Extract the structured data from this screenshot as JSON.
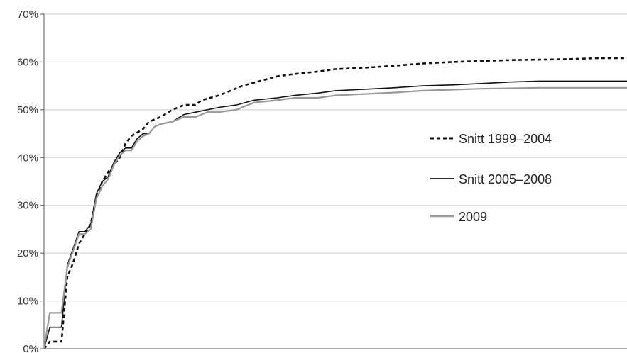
{
  "chart_data": {
    "type": "line",
    "title": "",
    "xlabel": "",
    "ylabel": "",
    "ylim": [
      0,
      70
    ],
    "yticks": [
      0,
      10,
      20,
      30,
      40,
      50,
      60,
      70
    ],
    "ytick_labels": [
      "0%",
      "10%",
      "20%",
      "30%",
      "40%",
      "50%",
      "60%",
      "70%"
    ],
    "x_tick_labels_visible": false,
    "xlim": [
      0,
      100
    ],
    "grid": "horizontal",
    "legend_position": "right",
    "series": [
      {
        "name": "Snitt 1999–2004",
        "style": "dotted",
        "color": "#111111",
        "points": [
          [
            0,
            0
          ],
          [
            1,
            1.5
          ],
          [
            3,
            1.5
          ],
          [
            4,
            15
          ],
          [
            5,
            18
          ],
          [
            6,
            22
          ],
          [
            7,
            24
          ],
          [
            8,
            26
          ],
          [
            9,
            32
          ],
          [
            10,
            35
          ],
          [
            11,
            37
          ],
          [
            13,
            40
          ],
          [
            14,
            43
          ],
          [
            15,
            44.5
          ],
          [
            17,
            46
          ],
          [
            18,
            47.5
          ],
          [
            20,
            48.5
          ],
          [
            22,
            50
          ],
          [
            24,
            51
          ],
          [
            26,
            51
          ],
          [
            27,
            52
          ],
          [
            30,
            53
          ],
          [
            32,
            54
          ],
          [
            34,
            55
          ],
          [
            37,
            56
          ],
          [
            40,
            57
          ],
          [
            43,
            57.5
          ],
          [
            47,
            58
          ],
          [
            50,
            58.5
          ],
          [
            55,
            58.8
          ],
          [
            60,
            59.2
          ],
          [
            65,
            59.7
          ],
          [
            70,
            60
          ],
          [
            75,
            60.2
          ],
          [
            80,
            60.4
          ],
          [
            85,
            60.5
          ],
          [
            90,
            60.6
          ],
          [
            95,
            60.8
          ],
          [
            100,
            60.8
          ]
        ]
      },
      {
        "name": "Snitt 2005–2008",
        "style": "solid",
        "color": "#111111",
        "points": [
          [
            0,
            0
          ],
          [
            1,
            4.5
          ],
          [
            3,
            4.5
          ],
          [
            4,
            17.5
          ],
          [
            5,
            21
          ],
          [
            6,
            24.5
          ],
          [
            7,
            24.5
          ],
          [
            8,
            26
          ],
          [
            9,
            32.5
          ],
          [
            10,
            35
          ],
          [
            11,
            36
          ],
          [
            12,
            39
          ],
          [
            13,
            41
          ],
          [
            14,
            42
          ],
          [
            15,
            42
          ],
          [
            16,
            44
          ],
          [
            17,
            45
          ],
          [
            18,
            45
          ],
          [
            19,
            46.5
          ],
          [
            20,
            47
          ],
          [
            22,
            47.5
          ],
          [
            24,
            49
          ],
          [
            26,
            49.5
          ],
          [
            28,
            50
          ],
          [
            30,
            50.5
          ],
          [
            33,
            51
          ],
          [
            36,
            52
          ],
          [
            40,
            52.5
          ],
          [
            43,
            53
          ],
          [
            47,
            53.5
          ],
          [
            50,
            54
          ],
          [
            55,
            54.3
          ],
          [
            60,
            54.6
          ],
          [
            65,
            55
          ],
          [
            70,
            55.2
          ],
          [
            75,
            55.5
          ],
          [
            80,
            55.8
          ],
          [
            85,
            56
          ],
          [
            90,
            56
          ],
          [
            95,
            56
          ],
          [
            100,
            56
          ]
        ]
      },
      {
        "name": "2009",
        "style": "solid",
        "color": "#999999",
        "points": [
          [
            0,
            0
          ],
          [
            1,
            7.5
          ],
          [
            3,
            7.5
          ],
          [
            4,
            17
          ],
          [
            5,
            20.5
          ],
          [
            6,
            24
          ],
          [
            7,
            24
          ],
          [
            8,
            25
          ],
          [
            9,
            31.5
          ],
          [
            10,
            34
          ],
          [
            11,
            35.5
          ],
          [
            12,
            38.5
          ],
          [
            13,
            40.5
          ],
          [
            14,
            41.5
          ],
          [
            15,
            41.5
          ],
          [
            16,
            43.5
          ],
          [
            17,
            44.5
          ],
          [
            18,
            45
          ],
          [
            19,
            46.5
          ],
          [
            20,
            47
          ],
          [
            22,
            47.5
          ],
          [
            24,
            48.5
          ],
          [
            26,
            48.5
          ],
          [
            28,
            49.5
          ],
          [
            30,
            49.5
          ],
          [
            33,
            50
          ],
          [
            36,
            51.5
          ],
          [
            40,
            52
          ],
          [
            43,
            52.5
          ],
          [
            47,
            52.5
          ],
          [
            50,
            53
          ],
          [
            55,
            53.3
          ],
          [
            60,
            53.6
          ],
          [
            65,
            54
          ],
          [
            70,
            54.2
          ],
          [
            75,
            54.4
          ],
          [
            80,
            54.5
          ],
          [
            85,
            54.6
          ],
          [
            90,
            54.6
          ],
          [
            95,
            54.6
          ],
          [
            100,
            54.6
          ]
        ]
      }
    ]
  }
}
